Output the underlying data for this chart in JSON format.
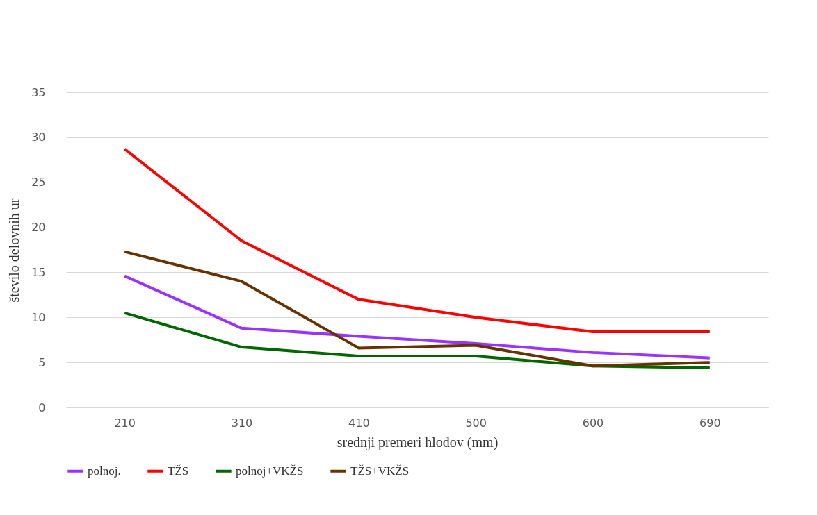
{
  "chart_data": {
    "type": "line",
    "xlabel": "srednji premeri hlodov (mm)",
    "ylabel": "število delovnih ur",
    "categories": [
      "210",
      "310",
      "410",
      "500",
      "600",
      "690"
    ],
    "series": [
      {
        "name": "polnoj.",
        "color": "#9933ff",
        "values": [
          14.6,
          8.8,
          7.9,
          7.1,
          6.1,
          5.5
        ]
      },
      {
        "name": "TŽS",
        "color": "#ff0000",
        "values": [
          28.7,
          18.5,
          12.0,
          10.0,
          8.4,
          8.4
        ]
      },
      {
        "name": "polnoj+VKŽS",
        "color": "#006600",
        "values": [
          10.5,
          6.7,
          5.7,
          5.7,
          4.6,
          4.4
        ]
      },
      {
        "name": "TŽS+VKŽS",
        "color": "#663300",
        "values": [
          17.3,
          14.0,
          6.6,
          6.9,
          4.6,
          5.0
        ]
      }
    ],
    "ylim": [
      0,
      35
    ],
    "yticks": [
      0,
      5,
      10,
      15,
      20,
      25,
      30,
      35
    ],
    "grid": "y",
    "legend": "bottom",
    "marker": "none",
    "line_style": "solid"
  }
}
